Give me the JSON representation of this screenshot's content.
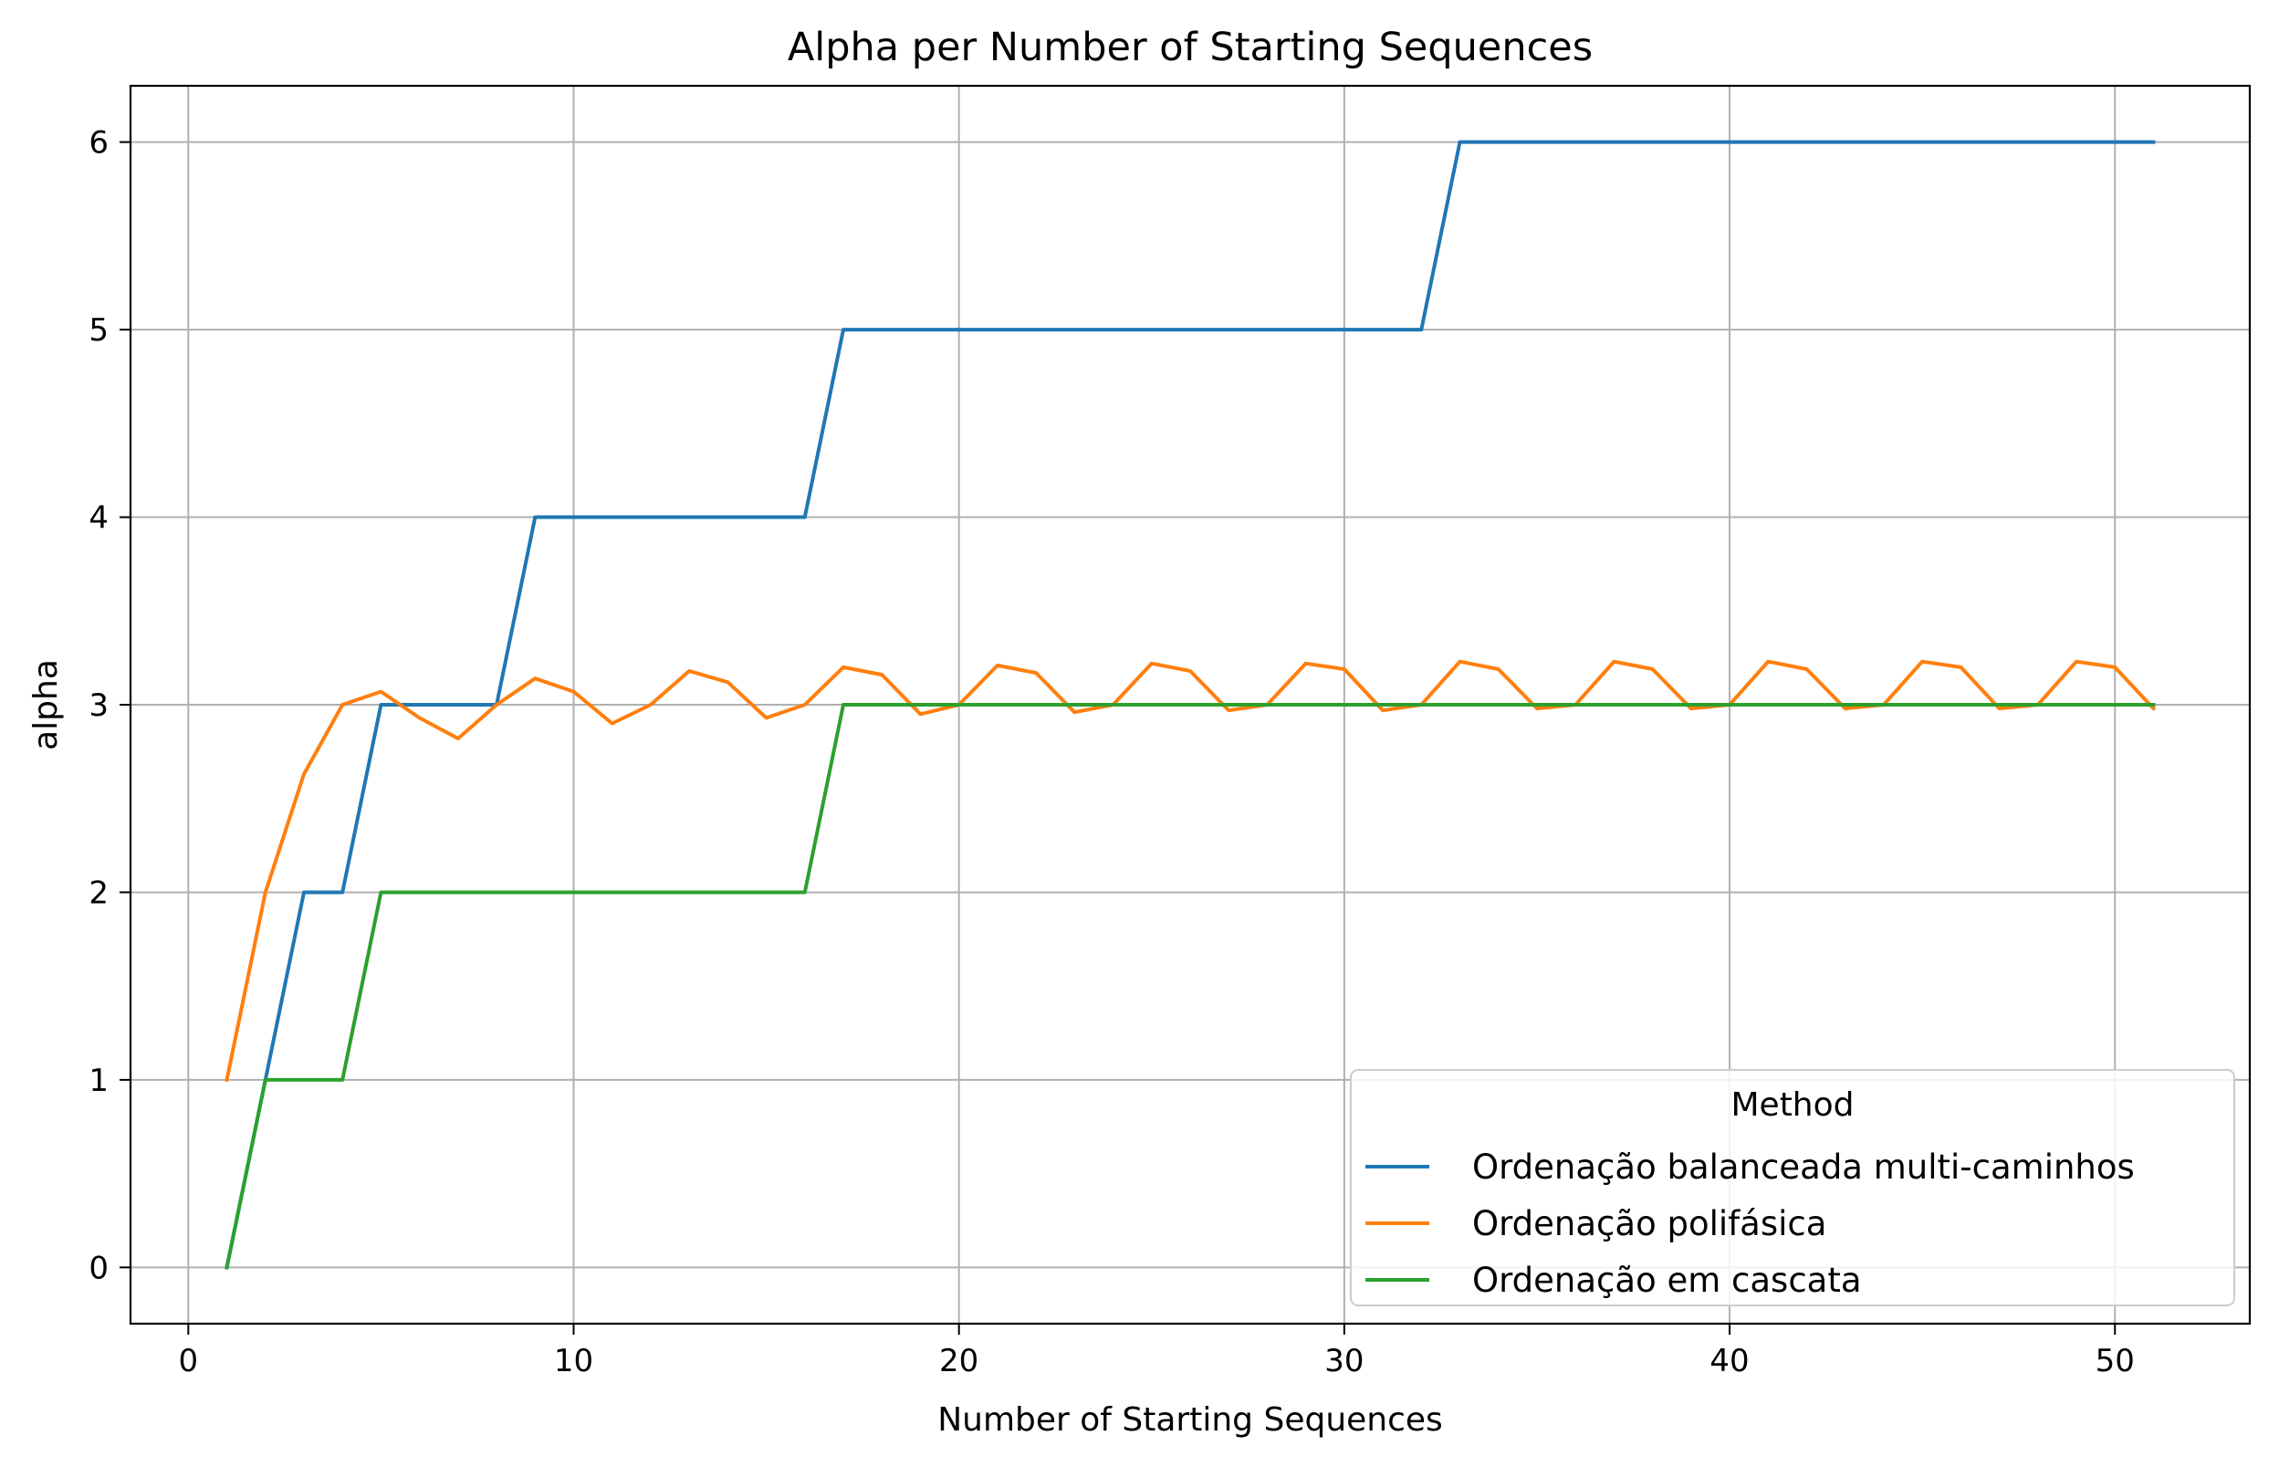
{
  "chart_data": {
    "type": "line",
    "title": "Alpha per Number of Starting Sequences",
    "xlabel": "Number of Starting Sequences",
    "ylabel": "alpha",
    "xlim": [
      -1.5,
      53.5
    ],
    "ylim": [
      -0.3,
      6.3
    ],
    "xticks": [
      0,
      10,
      20,
      30,
      40,
      50
    ],
    "yticks": [
      0,
      1,
      2,
      3,
      4,
      5,
      6
    ],
    "grid": true,
    "legend": {
      "title": "Method",
      "placement": "lower right"
    },
    "x": [
      1,
      2,
      3,
      4,
      5,
      6,
      7,
      8,
      9,
      10,
      11,
      12,
      13,
      14,
      15,
      16,
      17,
      18,
      19,
      20,
      21,
      22,
      23,
      24,
      25,
      26,
      27,
      28,
      29,
      30,
      31,
      32,
      33,
      34,
      35,
      36,
      37,
      38,
      39,
      40,
      41,
      42,
      43,
      44,
      45,
      46,
      47,
      48,
      49,
      50,
      51
    ],
    "series": [
      {
        "name": "Ordenação balanceada multi-caminhos",
        "color": "#1f77b4",
        "values": [
          0,
          1,
          2,
          2,
          3,
          3,
          3,
          3,
          4,
          4,
          4,
          4,
          4,
          4,
          4,
          4,
          5,
          5,
          5,
          5,
          5,
          5,
          5,
          5,
          5,
          5,
          5,
          5,
          5,
          5,
          5,
          5,
          6,
          6,
          6,
          6,
          6,
          6,
          6,
          6,
          6,
          6,
          6,
          6,
          6,
          6,
          6,
          6,
          6,
          6,
          6
        ]
      },
      {
        "name": "Ordenação polifásica",
        "color": "#ff7f0e",
        "values": [
          1,
          2,
          2.63,
          3,
          3.07,
          2.93,
          2.82,
          3,
          3.14,
          3.07,
          2.9,
          3,
          3.18,
          3.12,
          2.93,
          3,
          3.2,
          3.16,
          2.95,
          3,
          3.21,
          3.17,
          2.96,
          3,
          3.22,
          3.18,
          2.97,
          3,
          3.22,
          3.19,
          2.97,
          3,
          3.23,
          3.19,
          2.98,
          3,
          3.23,
          3.19,
          2.98,
          3,
          3.23,
          3.19,
          2.98,
          3,
          3.23,
          3.2,
          2.98,
          3,
          3.23,
          3.2,
          2.98
        ]
      },
      {
        "name": "Ordenação em cascata",
        "color": "#2ca02c",
        "values": [
          0,
          1,
          1,
          1,
          2,
          2,
          2,
          2,
          2,
          2,
          2,
          2,
          2,
          2,
          2,
          2,
          3,
          3,
          3,
          3,
          3,
          3,
          3,
          3,
          3,
          3,
          3,
          3,
          3,
          3,
          3,
          3,
          3,
          3,
          3,
          3,
          3,
          3,
          3,
          3,
          3,
          3,
          3,
          3,
          3,
          3,
          3,
          3,
          3,
          3,
          3
        ]
      }
    ]
  }
}
